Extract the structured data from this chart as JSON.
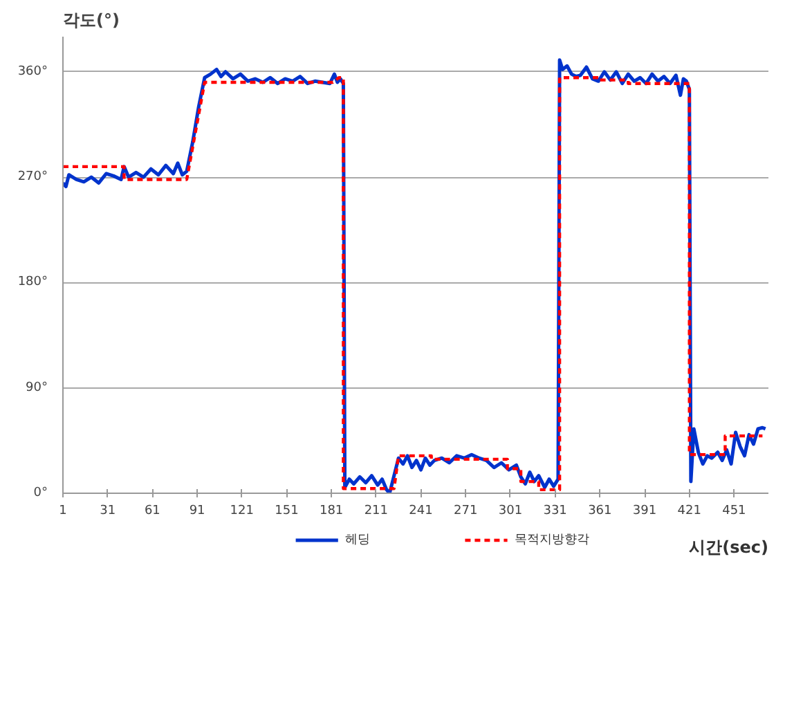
{
  "chart_data": {
    "type": "line",
    "xlabel": "시간(sec)",
    "ylabel": "각도(°)",
    "xlim": [
      1,
      474
    ],
    "xticks": [
      1,
      31,
      61,
      91,
      121,
      151,
      181,
      211,
      241,
      271,
      301,
      331,
      361,
      391,
      421,
      451
    ],
    "ylim": [
      0,
      390
    ],
    "yticks": [
      {
        "value": 0,
        "label": "0°"
      },
      {
        "value": 90,
        "label": "90°"
      },
      {
        "value": 180,
        "label": "180°"
      },
      {
        "value": 270,
        "label": "270°"
      },
      {
        "value": 360,
        "label": "360°"
      }
    ],
    "grid": "y",
    "legend": "bottom",
    "marker": "none",
    "series": [
      {
        "name": "헤딩",
        "color": "#0033cc",
        "line_style": "solid",
        "x": [
          1,
          3,
          5,
          10,
          15,
          20,
          25,
          30,
          35,
          40,
          42,
          45,
          50,
          55,
          60,
          65,
          70,
          75,
          78,
          81,
          84,
          88,
          92,
          96,
          100,
          104,
          107,
          110,
          115,
          120,
          125,
          130,
          135,
          140,
          145,
          150,
          155,
          160,
          165,
          170,
          175,
          180,
          183,
          185,
          187,
          189,
          190,
          193,
          196,
          200,
          204,
          208,
          212,
          215,
          218,
          220,
          222,
          226,
          229,
          232,
          235,
          238,
          241,
          244,
          247,
          250,
          255,
          260,
          265,
          270,
          275,
          280,
          285,
          290,
          295,
          300,
          305,
          308,
          311,
          314,
          317,
          320,
          324,
          327,
          330,
          333,
          334,
          336,
          339,
          342,
          345,
          348,
          352,
          356,
          360,
          364,
          368,
          372,
          376,
          380,
          384,
          388,
          392,
          396,
          400,
          404,
          408,
          412,
          415,
          417,
          419,
          421,
          422,
          424,
          427,
          430,
          433,
          436,
          440,
          443,
          446,
          449,
          452,
          455,
          458,
          461,
          464,
          467,
          470,
          472
        ],
        "values": [
          265,
          262,
          272,
          268,
          266,
          270,
          265,
          273,
          271,
          268,
          279,
          270,
          274,
          270,
          277,
          272,
          280,
          273,
          282,
          272,
          275,
          300,
          330,
          355,
          358,
          362,
          356,
          360,
          354,
          358,
          352,
          354,
          351,
          355,
          350,
          354,
          352,
          356,
          350,
          352,
          351,
          350,
          358,
          351,
          354,
          350,
          5,
          12,
          8,
          14,
          9,
          15,
          7,
          12,
          3,
          0,
          10,
          30,
          25,
          32,
          22,
          28,
          20,
          30,
          24,
          28,
          30,
          26,
          32,
          30,
          33,
          30,
          28,
          22,
          26,
          20,
          24,
          14,
          8,
          18,
          10,
          15,
          5,
          12,
          6,
          12,
          370,
          362,
          365,
          358,
          356,
          357,
          364,
          354,
          352,
          360,
          353,
          360,
          350,
          358,
          352,
          355,
          350,
          358,
          352,
          356,
          350,
          357,
          340,
          354,
          352,
          345,
          10,
          55,
          35,
          25,
          32,
          30,
          35,
          28,
          37,
          25,
          52,
          40,
          32,
          50,
          42,
          55,
          56,
          55
        ]
      },
      {
        "name": "목적지방향각",
        "color": "#ff0000",
        "line_style": "dashed",
        "x": [
          1,
          42,
          42,
          84,
          96,
          182,
          186,
          189,
          189,
          223,
          226,
          248,
          248,
          299,
          299,
          308,
          308,
          320,
          320,
          334,
          334,
          360,
          360,
          380,
          380,
          421,
          421,
          445,
          445,
          470
        ],
        "values": [
          279,
          279,
          268,
          268,
          351,
          351,
          355,
          355,
          4,
          4,
          32,
          32,
          29,
          29,
          21,
          21,
          10,
          10,
          3,
          3,
          355,
          355,
          353,
          353,
          350,
          350,
          33,
          33,
          49,
          49
        ]
      }
    ]
  }
}
